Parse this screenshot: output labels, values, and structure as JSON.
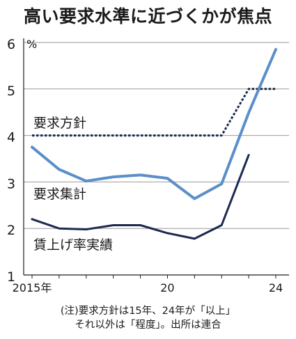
{
  "title": "高い要求水準に近づくかが焦点",
  "chart_data": {
    "type": "line",
    "x": [
      2015,
      2016,
      2017,
      2018,
      2019,
      2020,
      2021,
      2022,
      2023,
      2024
    ],
    "x_ticks": [
      2015,
      2020,
      2024
    ],
    "x_tick_labels": [
      "2015年",
      "20",
      "24"
    ],
    "ylim": [
      1,
      6
    ],
    "y_ticks": [
      1,
      2,
      3,
      4,
      5,
      6
    ],
    "y_unit": "%",
    "grid": "horizontal",
    "series": [
      {
        "name": "要求方針",
        "style": "dotted",
        "color": "#1b2a4e",
        "x": [
          2015,
          2016,
          2017,
          2018,
          2019,
          2020,
          2021,
          2022,
          2023,
          2024
        ],
        "values": [
          4,
          4,
          4,
          4,
          4,
          4,
          4,
          4,
          5,
          5
        ]
      },
      {
        "name": "要求集計",
        "style": "solid",
        "color": "#5b8fc9",
        "x": [
          2015,
          2016,
          2017,
          2018,
          2019,
          2020,
          2021,
          2022,
          2023,
          2024
        ],
        "values": [
          3.75,
          3.27,
          3.02,
          3.11,
          3.15,
          3.08,
          2.64,
          2.96,
          4.49,
          5.85
        ]
      },
      {
        "name": "賃上げ率実績",
        "style": "solid",
        "color": "#1b2a4e",
        "x": [
          2015,
          2016,
          2017,
          2018,
          2019,
          2020,
          2021,
          2022,
          2023
        ],
        "values": [
          2.2,
          2.0,
          1.98,
          2.07,
          2.07,
          1.9,
          1.78,
          2.07,
          3.58
        ]
      }
    ]
  },
  "notes": {
    "line1": "(注)要求方針は15年、24年が「以上」",
    "line2": "それ以外は「程度」。出所は連合"
  }
}
